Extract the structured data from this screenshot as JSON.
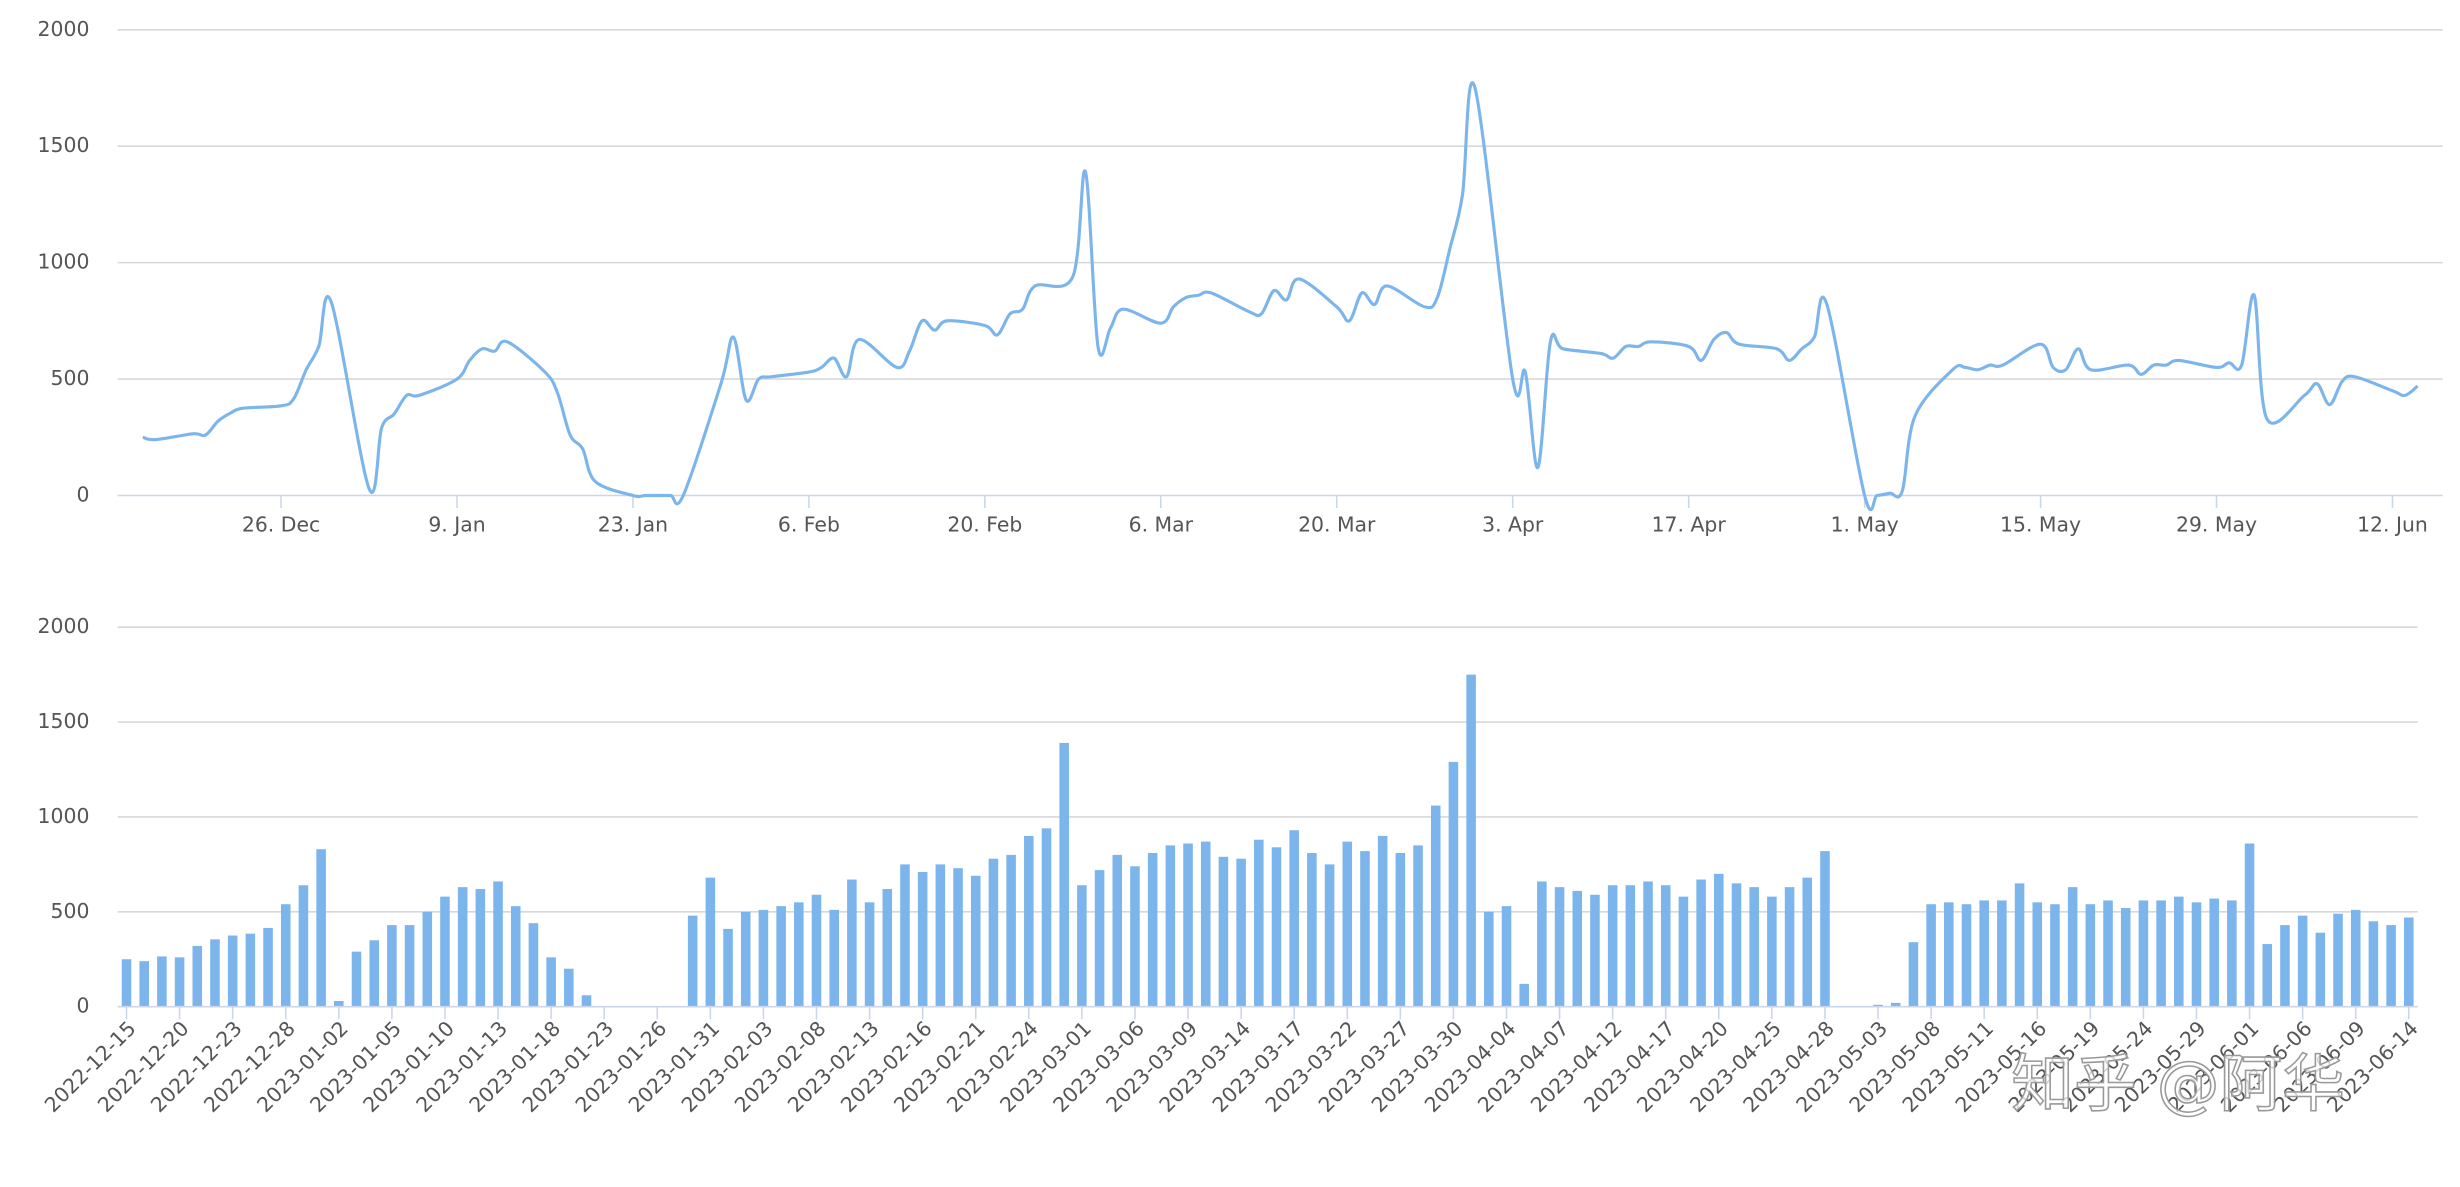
{
  "chart_data": [
    {
      "type": "line",
      "color": "#7cb5ec",
      "grid": true,
      "x": [
        "2022-12-15",
        "2022-12-16",
        "2022-12-19",
        "2022-12-20",
        "2022-12-21",
        "2022-12-22",
        "2022-12-23",
        "2022-12-26",
        "2022-12-27",
        "2022-12-28",
        "2022-12-29",
        "2022-12-30",
        "2023-01-02",
        "2023-01-03",
        "2023-01-04",
        "2023-01-05",
        "2023-01-06",
        "2023-01-09",
        "2023-01-10",
        "2023-01-11",
        "2023-01-12",
        "2023-01-13",
        "2023-01-16",
        "2023-01-17",
        "2023-01-18",
        "2023-01-19",
        "2023-01-20",
        "2023-01-23",
        "2023-01-24",
        "2023-01-25",
        "2023-01-26",
        "2023-01-27",
        "2023-01-30",
        "2023-01-31",
        "2023-02-01",
        "2023-02-02",
        "2023-02-03",
        "2023-02-06",
        "2023-02-07",
        "2023-02-08",
        "2023-02-09",
        "2023-02-10",
        "2023-02-13",
        "2023-02-14",
        "2023-02-15",
        "2023-02-16",
        "2023-02-17",
        "2023-02-20",
        "2023-02-21",
        "2023-02-22",
        "2023-02-23",
        "2023-02-24",
        "2023-02-27",
        "2023-02-28",
        "2023-03-01",
        "2023-03-02",
        "2023-03-03",
        "2023-03-06",
        "2023-03-07",
        "2023-03-08",
        "2023-03-09",
        "2023-03-10",
        "2023-03-13",
        "2023-03-14",
        "2023-03-15",
        "2023-03-16",
        "2023-03-17",
        "2023-03-20",
        "2023-03-21",
        "2023-03-22",
        "2023-03-23",
        "2023-03-24",
        "2023-03-27",
        "2023-03-28",
        "2023-03-29",
        "2023-03-30",
        "2023-03-31",
        "2023-04-03",
        "2023-04-04",
        "2023-04-05",
        "2023-04-06",
        "2023-04-07",
        "2023-04-10",
        "2023-04-11",
        "2023-04-12",
        "2023-04-13",
        "2023-04-14",
        "2023-04-17",
        "2023-04-18",
        "2023-04-19",
        "2023-04-20",
        "2023-04-21",
        "2023-04-24",
        "2023-04-25",
        "2023-04-26",
        "2023-04-27",
        "2023-04-28",
        "2023-05-01",
        "2023-05-02",
        "2023-05-03",
        "2023-05-04",
        "2023-05-05",
        "2023-05-08",
        "2023-05-09",
        "2023-05-10",
        "2023-05-11",
        "2023-05-12",
        "2023-05-15",
        "2023-05-16",
        "2023-05-17",
        "2023-05-18",
        "2023-05-19",
        "2023-05-22",
        "2023-05-23",
        "2023-05-24",
        "2023-05-25",
        "2023-05-26",
        "2023-05-29",
        "2023-05-30",
        "2023-05-31",
        "2023-06-01",
        "2023-06-02",
        "2023-06-05",
        "2023-06-06",
        "2023-06-07",
        "2023-06-08",
        "2023-06-09",
        "2023-06-12",
        "2023-06-13",
        "2023-06-14"
      ],
      "values": [
        250,
        240,
        265,
        260,
        320,
        355,
        375,
        385,
        415,
        540,
        640,
        830,
        30,
        290,
        350,
        430,
        430,
        500,
        580,
        630,
        620,
        660,
        530,
        440,
        260,
        200,
        60,
        0,
        0,
        0,
        0,
        0,
        480,
        680,
        410,
        500,
        510,
        530,
        550,
        590,
        510,
        670,
        550,
        620,
        750,
        710,
        750,
        730,
        690,
        780,
        800,
        900,
        940,
        1390,
        640,
        720,
        800,
        740,
        810,
        850,
        860,
        870,
        790,
        780,
        880,
        840,
        930,
        810,
        750,
        870,
        820,
        900,
        810,
        850,
        1060,
        1290,
        1750,
        500,
        530,
        120,
        660,
        630,
        610,
        590,
        640,
        640,
        660,
        640,
        580,
        670,
        700,
        650,
        630,
        580,
        630,
        680,
        820,
        0,
        0,
        10,
        20,
        340,
        540,
        550,
        540,
        560,
        560,
        650,
        550,
        540,
        630,
        540,
        560,
        520,
        560,
        560,
        580,
        550,
        570,
        560,
        860,
        330,
        430,
        480,
        390,
        490,
        510,
        450,
        430,
        470
      ],
      "xlim": [
        "2022-12-13",
        "2023-06-16"
      ],
      "xticks": [
        {
          "value": "2022-12-26",
          "label": "26. Dec"
        },
        {
          "value": "2023-01-09",
          "label": "9. Jan"
        },
        {
          "value": "2023-01-23",
          "label": "23. Jan"
        },
        {
          "value": "2023-02-06",
          "label": "6. Feb"
        },
        {
          "value": "2023-02-20",
          "label": "20. Feb"
        },
        {
          "value": "2023-03-06",
          "label": "6. Mar"
        },
        {
          "value": "2023-03-20",
          "label": "20. Mar"
        },
        {
          "value": "2023-04-03",
          "label": "3. Apr"
        },
        {
          "value": "2023-04-17",
          "label": "17. Apr"
        },
        {
          "value": "2023-05-01",
          "label": "1. May"
        },
        {
          "value": "2023-05-15",
          "label": "15. May"
        },
        {
          "value": "2023-05-29",
          "label": "29. May"
        },
        {
          "value": "2023-06-12",
          "label": "12. Jun"
        }
      ],
      "ylim": [
        0,
        2000
      ],
      "yticks": [
        0,
        500,
        1000,
        1500,
        2000
      ]
    },
    {
      "type": "bar",
      "color": "#7cb5ec",
      "grid": true,
      "categories": [
        "2022-12-15",
        null,
        null,
        "2022-12-20",
        null,
        null,
        "2022-12-23",
        null,
        null,
        "2022-12-28",
        null,
        null,
        "2023-01-02",
        null,
        null,
        "2023-01-05",
        null,
        null,
        "2023-01-10",
        null,
        null,
        "2023-01-13",
        null,
        null,
        "2023-01-18",
        null,
        null,
        "2023-01-23",
        null,
        null,
        "2023-01-26",
        null,
        null,
        "2023-01-31",
        null,
        null,
        "2023-02-03",
        null,
        null,
        "2023-02-08",
        null,
        null,
        "2023-02-13",
        null,
        null,
        "2023-02-16",
        null,
        null,
        "2023-02-21",
        null,
        null,
        "2023-02-24",
        null,
        null,
        "2023-03-01",
        null,
        null,
        "2023-03-06",
        null,
        null,
        "2023-03-09",
        null,
        null,
        "2023-03-14",
        null,
        null,
        "2023-03-17",
        null,
        null,
        "2023-03-22",
        null,
        null,
        "2023-03-27",
        null,
        null,
        "2023-03-30",
        null,
        null,
        "2023-04-04",
        null,
        null,
        "2023-04-07",
        null,
        null,
        "2023-04-12",
        null,
        null,
        "2023-04-17",
        null,
        null,
        "2023-04-20",
        null,
        null,
        "2023-04-25",
        null,
        null,
        "2023-04-28",
        null,
        null,
        "2023-05-03",
        null,
        null,
        "2023-05-08",
        null,
        null,
        "2023-05-11",
        null,
        null,
        "2023-05-16",
        null,
        null,
        "2023-05-19",
        null,
        null,
        "2023-05-24",
        null,
        null,
        "2023-05-29",
        null,
        null,
        "2023-06-01",
        null,
        null,
        "2023-06-06",
        null,
        null,
        "2023-06-09",
        null,
        null,
        "2023-06-14"
      ],
      "values": [
        250,
        240,
        265,
        260,
        320,
        355,
        375,
        385,
        415,
        540,
        640,
        830,
        30,
        290,
        350,
        430,
        430,
        500,
        580,
        630,
        620,
        660,
        530,
        440,
        260,
        200,
        60,
        0,
        0,
        0,
        0,
        0,
        480,
        680,
        410,
        500,
        510,
        530,
        550,
        590,
        510,
        670,
        550,
        620,
        750,
        710,
        750,
        730,
        690,
        780,
        800,
        900,
        940,
        1390,
        640,
        720,
        800,
        740,
        810,
        850,
        860,
        870,
        790,
        780,
        880,
        840,
        930,
        810,
        750,
        870,
        820,
        900,
        810,
        850,
        1060,
        1290,
        1750,
        500,
        530,
        120,
        660,
        630,
        610,
        590,
        640,
        640,
        660,
        640,
        580,
        670,
        700,
        650,
        630,
        580,
        630,
        680,
        820,
        0,
        0,
        10,
        20,
        340,
        540,
        550,
        540,
        560,
        560,
        650,
        550,
        540,
        630,
        540,
        560,
        520,
        560,
        560,
        580,
        550,
        570,
        560,
        860,
        330,
        430,
        480,
        390,
        490,
        510,
        450,
        430,
        470
      ],
      "ylim": [
        0,
        2000
      ],
      "yticks": [
        0,
        500,
        1000,
        1500,
        2000
      ],
      "watermark": "知乎 @阿华"
    }
  ]
}
